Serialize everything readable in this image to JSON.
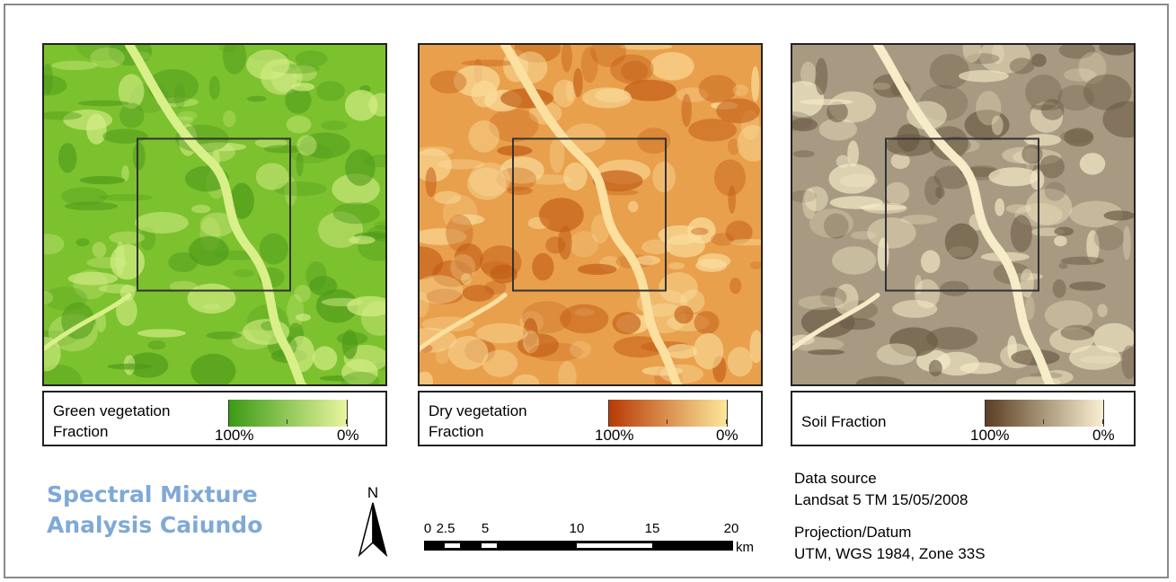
{
  "title_line1": "Spectral Mixture",
  "title_line2": "Analysis Caiundo",
  "panels": [
    {
      "legend_line1": "Green vegetation",
      "legend_line2": "Fraction",
      "min_label": "100%",
      "max_label": "0%",
      "ramp_start": "#3c9a14",
      "ramp_end": "#e8f5a0",
      "base": "#7cc12e",
      "dark": "#4e9a1a",
      "light": "#d8ef8a"
    },
    {
      "legend_line1": "Dry vegetation",
      "legend_line2": "Fraction",
      "min_label": "100%",
      "max_label": "0%",
      "ramp_start": "#b83a06",
      "ramp_end": "#fde79a",
      "base": "#e9a04c",
      "dark": "#c05a14",
      "light": "#fbe0a0"
    },
    {
      "legend_line1": "Soil Fraction",
      "legend_line2": "",
      "min_label": "100%",
      "max_label": "0%",
      "ramp_start": "#5a3f24",
      "ramp_end": "#fbf0d2",
      "base": "#a89a82",
      "dark": "#6a5a44",
      "light": "#f6ecc8"
    }
  ],
  "north_label": "N",
  "scale_labels": [
    "0",
    "2.5",
    "5",
    "10",
    "15",
    "20"
  ],
  "scale_unit": "km",
  "data_source_label": "Data source",
  "data_source_value": "Landsat 5 TM 15/05/2008",
  "projection_label": "Projection/Datum",
  "projection_value": "UTM, WGS 1984, Zone 33S"
}
